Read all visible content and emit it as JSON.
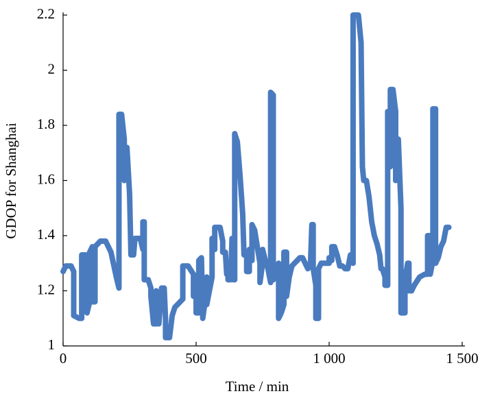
{
  "chart_data": {
    "type": "line",
    "xlabel": "Time / min",
    "ylabel": "GDOP for Shanghai",
    "color": "#4a7bbf",
    "x": [
      0,
      10,
      30,
      40,
      40,
      60,
      70,
      70,
      90,
      90,
      100,
      100,
      110,
      110,
      120,
      120,
      140,
      160,
      180,
      200,
      210,
      210,
      220,
      230,
      230,
      240,
      250,
      255,
      265,
      270,
      290,
      300,
      300,
      305,
      305,
      320,
      330,
      330,
      340,
      350,
      350,
      360,
      360,
      370,
      380,
      385,
      385,
      400,
      410,
      420,
      440,
      450,
      450,
      470,
      490,
      490,
      500,
      500,
      510,
      510,
      520,
      525,
      535,
      540,
      540,
      560,
      560,
      570,
      570,
      590,
      600,
      600,
      610,
      615,
      620,
      620,
      630,
      635,
      640,
      640,
      645,
      645,
      655,
      665,
      675,
      680,
      690,
      690,
      700,
      700,
      710,
      710,
      720,
      730,
      740,
      740,
      750,
      750,
      760,
      770,
      780,
      780,
      790,
      790,
      800,
      800,
      810,
      810,
      820,
      830,
      830,
      840,
      840,
      850,
      860,
      870,
      880,
      890,
      900,
      910,
      920,
      930,
      935,
      940,
      940,
      950,
      950,
      960,
      960,
      970,
      980,
      1000,
      1000,
      1010,
      1010,
      1020,
      1030,
      1040,
      1050,
      1060,
      1070,
      1080,
      1090,
      1090,
      1110,
      1120,
      1125,
      1130,
      1140,
      1150,
      1160,
      1170,
      1180,
      1190,
      1195,
      1200,
      1210,
      1210,
      1220,
      1220,
      1230,
      1230,
      1240,
      1250,
      1250,
      1260,
      1270,
      1270,
      1285,
      1285,
      1290,
      1295,
      1300,
      1300,
      1310,
      1320,
      1340,
      1360,
      1370,
      1370,
      1380,
      1380,
      1390,
      1390,
      1400,
      1400,
      1410,
      1420,
      1430,
      1440,
      1450
    ],
    "values": [
      1.27,
      1.29,
      1.29,
      1.27,
      1.11,
      1.1,
      1.1,
      1.33,
      1.33,
      1.12,
      1.16,
      1.34,
      1.36,
      1.16,
      1.16,
      1.36,
      1.38,
      1.38,
      1.34,
      1.25,
      1.21,
      1.84,
      1.84,
      1.75,
      1.6,
      1.72,
      1.55,
      1.33,
      1.33,
      1.39,
      1.39,
      1.35,
      1.45,
      1.45,
      1.24,
      1.24,
      1.21,
      1.18,
      1.08,
      1.08,
      1.2,
      1.15,
      1.08,
      1.21,
      1.21,
      1.1,
      1.03,
      1.03,
      1.11,
      1.14,
      1.16,
      1.17,
      1.29,
      1.29,
      1.26,
      1.18,
      1.22,
      1.12,
      1.12,
      1.31,
      1.32,
      1.1,
      1.17,
      1.25,
      1.15,
      1.25,
      1.39,
      1.35,
      1.43,
      1.43,
      1.38,
      1.34,
      1.34,
      1.26,
      1.26,
      1.24,
      1.24,
      1.39,
      1.37,
      1.24,
      1.24,
      1.77,
      1.74,
      1.62,
      1.48,
      1.33,
      1.33,
      1.27,
      1.27,
      1.35,
      1.31,
      1.44,
      1.42,
      1.36,
      1.3,
      1.23,
      1.3,
      1.35,
      1.31,
      1.28,
      1.23,
      1.92,
      1.91,
      1.24,
      1.26,
      1.28,
      1.3,
      1.1,
      1.12,
      1.15,
      1.34,
      1.34,
      1.18,
      1.25,
      1.29,
      1.3,
      1.31,
      1.32,
      1.32,
      1.3,
      1.28,
      1.3,
      1.44,
      1.44,
      1.28,
      1.22,
      1.1,
      1.1,
      1.28,
      1.3,
      1.3,
      1.3,
      1.32,
      1.31,
      1.36,
      1.36,
      1.33,
      1.29,
      1.29,
      1.28,
      1.28,
      1.33,
      1.3,
      2.2,
      2.2,
      2.1,
      1.65,
      1.6,
      1.6,
      1.54,
      1.45,
      1.4,
      1.37,
      1.33,
      1.28,
      1.28,
      1.25,
      1.22,
      1.22,
      1.85,
      1.65,
      1.93,
      1.93,
      1.85,
      1.6,
      1.75,
      1.5,
      1.12,
      1.12,
      1.27,
      1.27,
      1.3,
      1.3,
      1.2,
      1.2,
      1.22,
      1.25,
      1.26,
      1.26,
      1.4,
      1.4,
      1.26,
      1.31,
      1.86,
      1.86,
      1.3,
      1.32,
      1.36,
      1.38,
      1.43,
      1.43
    ],
    "xlim": [
      0,
      1500
    ],
    "ylim": [
      1,
      2.2
    ],
    "xticks": [
      0,
      500,
      {
        "value": 1000,
        "label": "1 000"
      },
      {
        "value": 1500,
        "label": "1 500"
      }
    ],
    "yticks": [
      1,
      1.2,
      1.4,
      1.6,
      1.8,
      2,
      2.2
    ]
  }
}
